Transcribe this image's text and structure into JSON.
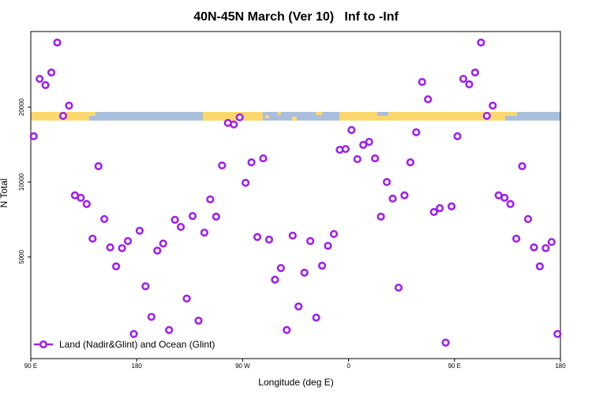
{
  "chart_data": {
    "type": "scatter",
    "title": "40N-45N March (Ver 10)   Inf to -Inf",
    "x_label": "Longitude (deg E)",
    "y_label": "N Total",
    "x": [
      92.5,
      97.5,
      102.5,
      107.5,
      112.5,
      117.5,
      122.5,
      127.5,
      132.5,
      137.5,
      142.5,
      147.5,
      152.5,
      157.5,
      162.5,
      167.5,
      172.5,
      177.5,
      182.5,
      187.5,
      192.5,
      197.5,
      202.5,
      207.5,
      212.5,
      217.5,
      222.5,
      227.5,
      232.5,
      237.5,
      242.5,
      247.5,
      252.5,
      257.5,
      262.5,
      267.5,
      272.5,
      277.5,
      282.5,
      287.5,
      292.5,
      297.5,
      302.5,
      307.5,
      312.5,
      317.5,
      322.5,
      327.5,
      332.5,
      337.5,
      342.5,
      347.5,
      352.5,
      357.5,
      362.5,
      367.5,
      372.5,
      377.5,
      382.5,
      387.5,
      392.5,
      397.5,
      402.5,
      407.5,
      412.5,
      417.5,
      422.5,
      427.5,
      432.5,
      437.5,
      442.5,
      447.5,
      452.5,
      457.5,
      462.5,
      467.5,
      472.5,
      477.5,
      482.5,
      487.5,
      492.5,
      497.5,
      502.5,
      507.5,
      512.5,
      517.5,
      522.5,
      527.5,
      532.5,
      537.5
    ],
    "series": [
      {
        "name": "Land (Nadir&Glint) and Ocean (Glint)",
        "color": "#a020f0",
        "values": [
          15280,
          26000,
          24540,
          27580,
          36380,
          18460,
          20290,
          8840,
          8640,
          8160,
          5920,
          11580,
          7100,
          5460,
          4580,
          5420,
          5790,
          2450,
          6370,
          3810,
          2870,
          5300,
          5660,
          2540,
          7050,
          6600,
          3400,
          7300,
          2770,
          6260,
          8520,
          7260,
          11660,
          17290,
          17040,
          18200,
          9930,
          12000,
          6010,
          12450,
          5870,
          4050,
          4510,
          2540,
          6090,
          3160,
          4320,
          5790,
          2850,
          4610,
          5540,
          6180,
          13480,
          13580,
          16190,
          12360,
          14100,
          14510,
          12450,
          7260,
          10000,
          8580,
          3760,
          8840,
          12000,
          15850,
          25260,
          21520,
          7580,
          7850,
          2260,
          7980,
          15280,
          26000,
          24710,
          27580,
          36380,
          18460,
          20290,
          8840,
          8640,
          8160,
          5920,
          11580,
          7100,
          5460,
          4580,
          5420,
          5740,
          2450
        ]
      }
    ],
    "xlim": [
      90,
      540
    ],
    "xticks": [
      {
        "value": 90,
        "label": "90 E"
      },
      180,
      {
        "value": 270,
        "label": "90 W"
      },
      {
        "value": 360,
        "label": "0"
      },
      {
        "value": 450,
        "label": "90 E"
      },
      {
        "value": 540,
        "label": "180"
      }
    ],
    "ylim": [
      1950,
      40300
    ],
    "yticks": [
      5000,
      10000,
      20000
    ],
    "ylog": true,
    "legend": "bottom-left"
  }
}
